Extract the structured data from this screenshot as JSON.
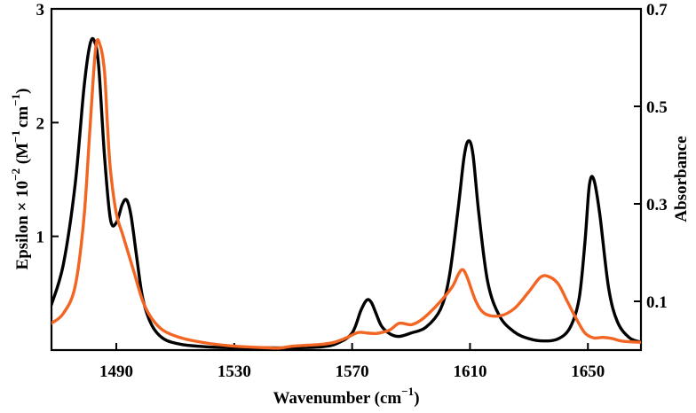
{
  "chart_data": {
    "type": "line",
    "xlabel": "Wavenumber (cm",
    "xlabel_sup": "−1",
    "xlabel_end": ")",
    "ylabel_left": "Epsilon × 10",
    "ylabel_left_sup": "−2",
    "ylabel_left_mid": " (M",
    "ylabel_left_sup2": "−1",
    "ylabel_left_mid2": "cm",
    "ylabel_left_sup3": "−1",
    "ylabel_left_end": ")",
    "ylabel_right": "Absorbance",
    "xlim": [
      1468,
      1668
    ],
    "ylim_left": [
      0,
      3
    ],
    "ylim_right": [
      0,
      0.7
    ],
    "x_ticks": [
      1490,
      1530,
      1570,
      1610,
      1650
    ],
    "x_tick_labels": [
      "1490",
      "1530",
      "1570",
      "1610",
      "1650"
    ],
    "y_left_ticks": [
      1,
      2,
      3
    ],
    "y_left_tick_labels": [
      "1",
      "2",
      "3"
    ],
    "y_right_ticks": [
      0.1,
      0.3,
      0.5,
      0.7
    ],
    "y_right_tick_labels": [
      "0.1",
      "0.3",
      "0.5",
      "0.7"
    ],
    "grid": false,
    "series": [
      {
        "axis": "left",
        "color": "#000000",
        "x": [
          1468,
          1472,
          1476,
          1479,
          1481,
          1482.5,
          1484,
          1486,
          1488,
          1490,
          1492,
          1493.5,
          1495,
          1497,
          1499,
          1502,
          1506,
          1512,
          1520,
          1530,
          1540,
          1550,
          1560,
          1565,
          1570,
          1573,
          1575,
          1576.5,
          1578,
          1580,
          1583,
          1586,
          1590,
          1595,
          1600,
          1603,
          1606,
          1608,
          1609.5,
          1611,
          1613,
          1616,
          1620,
          1625,
          1630,
          1635,
          1640,
          1644,
          1647,
          1649,
          1650.5,
          1652,
          1654,
          1657,
          1660,
          1664,
          1668
        ],
        "y": [
          0.4,
          0.75,
          1.45,
          2.3,
          2.68,
          2.72,
          2.5,
          1.7,
          1.15,
          1.12,
          1.28,
          1.32,
          1.18,
          0.8,
          0.45,
          0.22,
          0.1,
          0.05,
          0.03,
          0.02,
          0.02,
          0.02,
          0.03,
          0.06,
          0.15,
          0.35,
          0.44,
          0.42,
          0.33,
          0.21,
          0.14,
          0.12,
          0.15,
          0.2,
          0.36,
          0.65,
          1.25,
          1.7,
          1.84,
          1.72,
          1.2,
          0.6,
          0.3,
          0.16,
          0.1,
          0.08,
          0.1,
          0.2,
          0.45,
          0.95,
          1.45,
          1.5,
          1.2,
          0.55,
          0.25,
          0.11,
          0.07
        ]
      },
      {
        "axis": "right",
        "color": "#f26522",
        "x": [
          1468,
          1472,
          1476,
          1479,
          1481,
          1483,
          1484.5,
          1486,
          1487,
          1488,
          1490,
          1492,
          1494,
          1496,
          1499,
          1502,
          1506,
          1512,
          1520,
          1530,
          1540,
          1545,
          1550,
          1555,
          1560,
          1564,
          1568,
          1572,
          1575,
          1578,
          1580,
          1583,
          1586,
          1590,
          1593,
          1596,
          1600,
          1604,
          1606,
          1607.5,
          1609,
          1612,
          1615,
          1620,
          1625,
          1630,
          1634,
          1637,
          1640,
          1643,
          1646,
          1649,
          1652,
          1655,
          1658,
          1662,
          1668
        ],
        "y": [
          0.055,
          0.075,
          0.13,
          0.27,
          0.45,
          0.62,
          0.625,
          0.57,
          0.46,
          0.37,
          0.28,
          0.24,
          0.2,
          0.16,
          0.1,
          0.065,
          0.04,
          0.025,
          0.015,
          0.008,
          0.005,
          0.004,
          0.008,
          0.01,
          0.012,
          0.016,
          0.025,
          0.036,
          0.035,
          0.034,
          0.036,
          0.042,
          0.055,
          0.052,
          0.06,
          0.075,
          0.1,
          0.13,
          0.155,
          0.165,
          0.15,
          0.1,
          0.075,
          0.07,
          0.085,
          0.12,
          0.15,
          0.15,
          0.135,
          0.1,
          0.065,
          0.035,
          0.025,
          0.026,
          0.024,
          0.018,
          0.016
        ]
      }
    ]
  }
}
